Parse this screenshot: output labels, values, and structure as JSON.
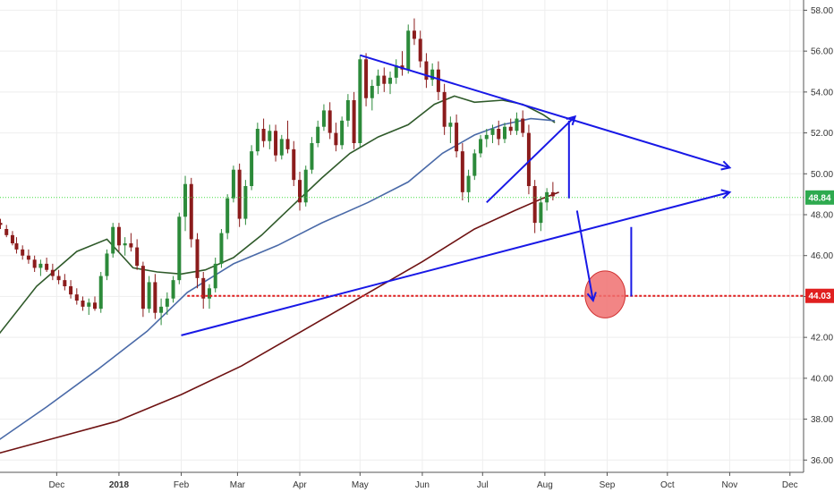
{
  "chart_data": {
    "type": "candlestick",
    "x_axis": {
      "labels": [
        {
          "text": "Dec",
          "day": 30
        },
        {
          "text": "2018",
          "day": 61,
          "bold": true
        },
        {
          "text": "Feb",
          "day": 92
        },
        {
          "text": "Mar",
          "day": 120
        },
        {
          "text": "Apr",
          "day": 151
        },
        {
          "text": "May",
          "day": 181
        },
        {
          "text": "Jun",
          "day": 212
        },
        {
          "text": "Jul",
          "day": 242
        },
        {
          "text": "Aug",
          "day": 273
        },
        {
          "text": "Sep",
          "day": 304
        },
        {
          "text": "Oct",
          "day": 334
        },
        {
          "text": "Nov",
          "day": 365
        },
        {
          "text": "Dec",
          "day": 395
        }
      ],
      "day_range": [
        0,
        405
      ]
    },
    "y_axis": {
      "ticks": [
        "36.00",
        "38.00",
        "40.00",
        "42.00",
        "44.00",
        "46.00",
        "48.00",
        "50.00",
        "52.00",
        "54.00",
        "56.00",
        "58.00"
      ],
      "range": [
        35.4,
        58.5
      ],
      "side": "right"
    },
    "price_markers": [
      {
        "value": 48.84,
        "label": "48.84",
        "color": "#2eaa4f",
        "line_color": "#44dd44",
        "line_style": "dotted"
      },
      {
        "value": 44.03,
        "label": "44.03",
        "color": "#e02020",
        "line_color": "#e02020",
        "line_style": "dotted",
        "line_start_day": 95
      }
    ],
    "moving_averages": [
      {
        "name": "ma-50",
        "color": "#2f5a2a",
        "points": [
          [
            0,
            42.0
          ],
          [
            20,
            44.5
          ],
          [
            40,
            46.2
          ],
          [
            55,
            46.8
          ],
          [
            68,
            45.4
          ],
          [
            80,
            45.2
          ],
          [
            92,
            45.1
          ],
          [
            104,
            45.3
          ],
          [
            118,
            45.9
          ],
          [
            132,
            47.0
          ],
          [
            148,
            48.5
          ],
          [
            162,
            49.8
          ],
          [
            176,
            51.0
          ],
          [
            190,
            51.8
          ],
          [
            205,
            52.4
          ],
          [
            218,
            53.4
          ],
          [
            228,
            53.8
          ],
          [
            238,
            53.5
          ],
          [
            252,
            53.6
          ],
          [
            262,
            53.4
          ],
          [
            272,
            52.9
          ],
          [
            278,
            52.5
          ]
        ]
      },
      {
        "name": "ma-100",
        "color": "#4a6aa8",
        "points": [
          [
            0,
            36.9
          ],
          [
            25,
            38.6
          ],
          [
            50,
            40.4
          ],
          [
            75,
            42.3
          ],
          [
            95,
            44.2
          ],
          [
            118,
            45.6
          ],
          [
            140,
            46.5
          ],
          [
            162,
            47.6
          ],
          [
            185,
            48.6
          ],
          [
            205,
            49.6
          ],
          [
            222,
            51.0
          ],
          [
            238,
            51.9
          ],
          [
            252,
            52.4
          ],
          [
            266,
            52.7
          ],
          [
            278,
            52.6
          ]
        ]
      },
      {
        "name": "ma-200",
        "color": "#6e1212",
        "points": [
          [
            0,
            36.3
          ],
          [
            30,
            37.1
          ],
          [
            60,
            37.9
          ],
          [
            92,
            39.2
          ],
          [
            122,
            40.6
          ],
          [
            152,
            42.3
          ],
          [
            182,
            44.0
          ],
          [
            212,
            45.7
          ],
          [
            238,
            47.3
          ],
          [
            258,
            48.2
          ],
          [
            272,
            48.8
          ],
          [
            280,
            49.1
          ]
        ]
      }
    ],
    "candles": [
      [
        2,
        47.6,
        47.8,
        47.3,
        47.5
      ],
      [
        5,
        47.3,
        47.5,
        46.9,
        47.0
      ],
      [
        8,
        47.0,
        47.2,
        46.5,
        46.6
      ],
      [
        10,
        46.6,
        46.9,
        46.1,
        46.3
      ],
      [
        13,
        46.3,
        46.5,
        45.8,
        46.0
      ],
      [
        16,
        46.0,
        46.3,
        45.6,
        45.8
      ],
      [
        19,
        45.8,
        46.0,
        45.2,
        45.4
      ],
      [
        22,
        45.4,
        45.8,
        45.0,
        45.6
      ],
      [
        25,
        45.6,
        45.9,
        45.2,
        45.3
      ],
      [
        28,
        45.3,
        45.6,
        44.8,
        45.0
      ],
      [
        31,
        45.0,
        45.3,
        44.6,
        44.8
      ],
      [
        34,
        44.8,
        45.1,
        44.3,
        44.5
      ],
      [
        37,
        44.5,
        44.8,
        43.9,
        44.1
      ],
      [
        40,
        44.1,
        44.4,
        43.6,
        43.8
      ],
      [
        43,
        43.8,
        44.0,
        43.3,
        43.5
      ],
      [
        46,
        43.5,
        43.9,
        43.1,
        43.7
      ],
      [
        49,
        43.7,
        44.0,
        43.3,
        43.4
      ],
      [
        52,
        43.4,
        45.2,
        43.2,
        45.0
      ],
      [
        55,
        45.0,
        46.3,
        44.8,
        46.1
      ],
      [
        58,
        46.1,
        47.6,
        45.9,
        47.4
      ],
      [
        61,
        47.4,
        47.6,
        46.2,
        46.5
      ],
      [
        64,
        46.5,
        46.9,
        46.0,
        46.6
      ],
      [
        67,
        46.6,
        47.1,
        46.2,
        46.4
      ],
      [
        70,
        46.4,
        46.8,
        45.3,
        45.5
      ],
      [
        73,
        45.5,
        45.7,
        43.0,
        43.4
      ],
      [
        76,
        43.4,
        45.0,
        43.2,
        44.7
      ],
      [
        79,
        44.7,
        45.1,
        42.9,
        43.2
      ],
      [
        82,
        43.2,
        43.9,
        42.6,
        43.5
      ],
      [
        85,
        43.5,
        44.2,
        43.1,
        43.9
      ],
      [
        88,
        43.9,
        45.0,
        43.7,
        44.8
      ],
      [
        91,
        44.8,
        48.1,
        44.6,
        47.9
      ],
      [
        94,
        47.9,
        49.9,
        47.2,
        49.5
      ],
      [
        97,
        49.5,
        49.8,
        46.4,
        46.8
      ],
      [
        100,
        46.8,
        47.1,
        44.4,
        44.9
      ],
      [
        103,
        44.9,
        45.2,
        43.4,
        43.9
      ],
      [
        106,
        43.9,
        44.6,
        43.4,
        44.4
      ],
      [
        109,
        44.4,
        45.9,
        44.2,
        45.6
      ],
      [
        112,
        45.6,
        47.3,
        45.4,
        47.1
      ],
      [
        115,
        47.1,
        49.0,
        46.8,
        48.8
      ],
      [
        118,
        48.8,
        50.4,
        48.6,
        50.2
      ],
      [
        121,
        50.2,
        50.5,
        47.4,
        47.8
      ],
      [
        124,
        47.8,
        49.7,
        47.5,
        49.4
      ],
      [
        127,
        49.4,
        51.4,
        49.2,
        51.1
      ],
      [
        130,
        51.1,
        52.5,
        50.9,
        52.2
      ],
      [
        133,
        52.2,
        52.7,
        51.3,
        51.6
      ],
      [
        136,
        51.6,
        52.4,
        51.2,
        52.1
      ],
      [
        139,
        52.1,
        52.4,
        50.6,
        50.9
      ],
      [
        142,
        50.9,
        51.9,
        50.7,
        51.7
      ],
      [
        145,
        51.7,
        52.6,
        51.0,
        51.2
      ],
      [
        148,
        51.2,
        51.6,
        49.4,
        49.7
      ],
      [
        151,
        49.7,
        50.1,
        48.2,
        48.6
      ],
      [
        154,
        48.6,
        50.4,
        48.4,
        50.2
      ],
      [
        157,
        50.2,
        51.8,
        50.0,
        51.5
      ],
      [
        160,
        51.5,
        52.6,
        51.3,
        52.3
      ],
      [
        163,
        52.3,
        53.4,
        52.1,
        53.1
      ],
      [
        166,
        53.1,
        53.5,
        51.7,
        52.0
      ],
      [
        169,
        52.0,
        52.5,
        51.1,
        51.4
      ],
      [
        172,
        51.4,
        52.8,
        51.2,
        52.6
      ],
      [
        175,
        52.6,
        53.9,
        52.3,
        53.6
      ],
      [
        178,
        53.6,
        54.0,
        51.2,
        51.5
      ],
      [
        181,
        51.5,
        55.8,
        51.3,
        55.6
      ],
      [
        184,
        55.6,
        55.9,
        53.3,
        53.7
      ],
      [
        187,
        53.7,
        54.6,
        53.1,
        54.3
      ],
      [
        190,
        54.3,
        55.1,
        53.9,
        54.8
      ],
      [
        193,
        54.8,
        55.2,
        54.0,
        54.4
      ],
      [
        196,
        54.4,
        55.0,
        53.9,
        54.7
      ],
      [
        199,
        54.7,
        55.6,
        54.4,
        55.3
      ],
      [
        202,
        55.3,
        56.0,
        54.8,
        55.1
      ],
      [
        205,
        55.1,
        57.3,
        54.9,
        57.0
      ],
      [
        208,
        57.0,
        57.6,
        56.3,
        56.6
      ],
      [
        211,
        56.6,
        57.0,
        55.2,
        55.5
      ],
      [
        214,
        55.5,
        55.9,
        54.2,
        54.6
      ],
      [
        217,
        54.6,
        55.4,
        54.3,
        55.1
      ],
      [
        220,
        55.1,
        55.5,
        53.6,
        54.0
      ],
      [
        223,
        54.0,
        54.4,
        51.9,
        52.3
      ],
      [
        226,
        52.3,
        52.8,
        51.5,
        52.5
      ],
      [
        229,
        52.5,
        52.9,
        50.8,
        51.1
      ],
      [
        232,
        51.1,
        51.5,
        48.7,
        49.1
      ],
      [
        235,
        49.1,
        50.2,
        48.6,
        49.9
      ],
      [
        238,
        49.9,
        51.2,
        49.7,
        51.0
      ],
      [
        241,
        51.0,
        51.9,
        50.8,
        51.7
      ],
      [
        244,
        51.7,
        52.2,
        51.3,
        51.9
      ],
      [
        247,
        51.9,
        52.4,
        51.5,
        52.2
      ],
      [
        250,
        52.2,
        52.6,
        51.4,
        51.7
      ],
      [
        253,
        51.7,
        52.5,
        51.5,
        52.3
      ],
      [
        256,
        52.3,
        52.7,
        51.9,
        52.1
      ],
      [
        259,
        52.1,
        53.0,
        51.9,
        52.7
      ],
      [
        262,
        52.7,
        53.1,
        51.8,
        52.0
      ],
      [
        265,
        52.0,
        52.4,
        49.0,
        49.4
      ],
      [
        268,
        49.4,
        49.7,
        47.1,
        47.6
      ],
      [
        271,
        47.6,
        48.9,
        47.2,
        48.6
      ],
      [
        274,
        48.6,
        49.3,
        48.2,
        49.1
      ],
      [
        277,
        49.1,
        49.6,
        48.7,
        48.9
      ]
    ],
    "drawings": {
      "lines": [
        {
          "name": "upper-trendline",
          "from": [
            181,
            55.8
          ],
          "to": [
            365,
            50.3
          ],
          "arrow": true
        },
        {
          "name": "lower-trendline",
          "from": [
            92,
            42.1
          ],
          "to": [
            365,
            49.1
          ],
          "arrow": true
        },
        {
          "name": "flag-upper-arrow",
          "from": [
            244,
            48.6
          ],
          "to": [
            288,
            52.8
          ],
          "arrow": true
        },
        {
          "name": "measure-segment",
          "from": [
            285,
            52.6
          ],
          "to": [
            285,
            48.8
          ],
          "arrow": false
        },
        {
          "name": "projection-arrow",
          "from": [
            289,
            48.2
          ],
          "to": [
            297,
            43.8
          ],
          "arrow": true
        },
        {
          "name": "target-vertical-line",
          "from": [
            316,
            47.4
          ],
          "to": [
            316,
            44.0
          ],
          "arrow": false
        }
      ],
      "target_circle": {
        "center": [
          303,
          44.1
        ],
        "radius_days": 10,
        "radius_value": 1.15,
        "fill": "#f07070",
        "stroke": "#d03030"
      }
    },
    "colors": {
      "candle_up": "#2c8a3a",
      "candle_down": "#8b1c1c",
      "drawing": "#1818e6",
      "grid": "#eeeeee"
    }
  }
}
